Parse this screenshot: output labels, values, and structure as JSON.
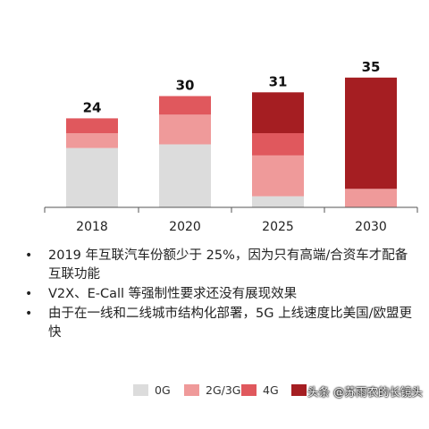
{
  "chart_data": {
    "type": "bar",
    "stacked": true,
    "categories": [
      "2018",
      "2020",
      "2025",
      "2030"
    ],
    "totals": [
      24,
      30,
      31,
      35
    ],
    "series": [
      {
        "name": "0G",
        "color": "#dcdcdc",
        "values": [
          16,
          17,
          3,
          0
        ]
      },
      {
        "name": "2G/3G",
        "color": "#ef9a9a",
        "values": [
          4,
          8,
          11,
          5
        ]
      },
      {
        "name": "4G",
        "color": "#e0585d",
        "values": [
          4,
          5,
          6,
          0
        ]
      },
      {
        "name": "",
        "color": "#a51e22",
        "values": [
          0,
          0,
          11,
          30
        ]
      }
    ],
    "ylim": [
      0,
      36
    ],
    "grid": false,
    "legend_placement": "bottom-right"
  },
  "bullets": [
    "2019 年互联汽车份额少于 25%，因为只有高端/合资车才配备互联功能",
    "V2X、E-Call 等强制性要求还没有展现效果",
    "由于在一线和二线城市结构化部署，5G 上线速度比美国/欧盟更快"
  ],
  "watermark": "头条 @苏雨农的长镜头"
}
